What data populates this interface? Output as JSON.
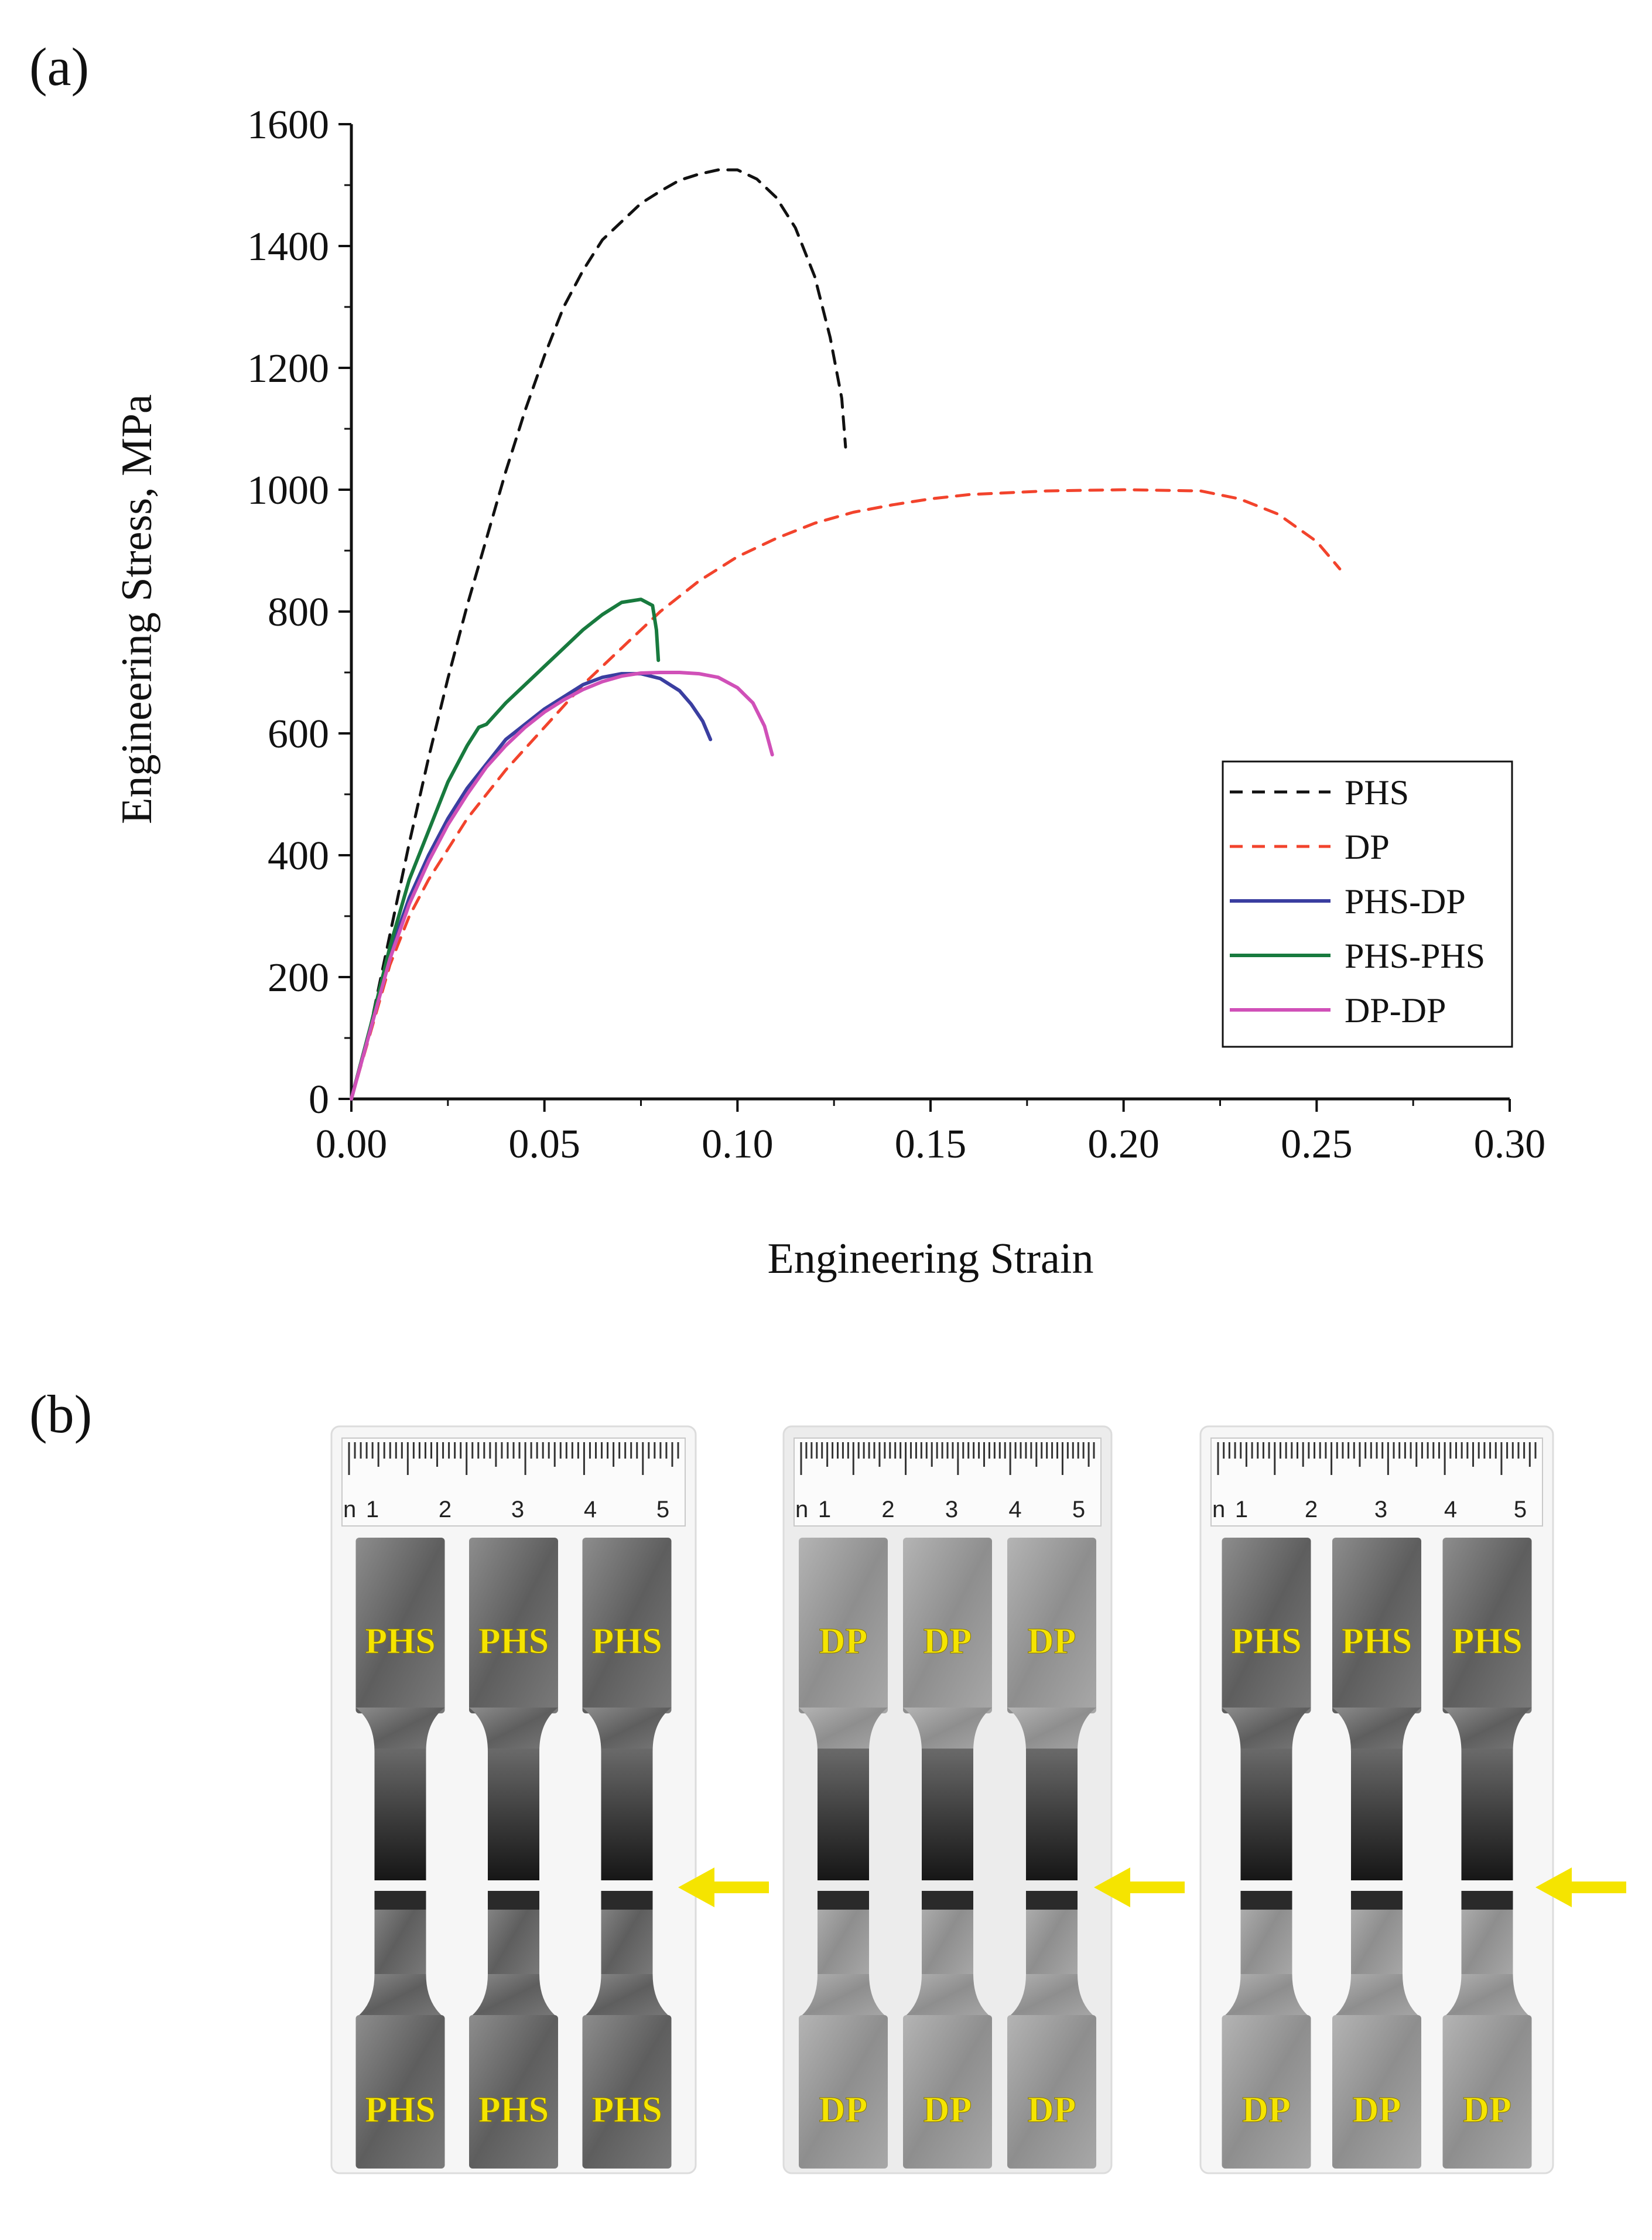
{
  "panel_a_label": "(a)",
  "panel_b_label": "(b)",
  "colors": {
    "PHS": "#111111",
    "DP": "#f2432c",
    "PHS-DP": "#3a3ea0",
    "PHS-PHS": "#187a3e",
    "DP-DP": "#d050b8",
    "arrow": "#f5e400",
    "label": "#f5e400"
  },
  "chart_data": {
    "type": "line",
    "title": "",
    "xlabel": "Engineering Strain",
    "ylabel": "Engineering Stress, MPa",
    "xlim": [
      0,
      0.3
    ],
    "ylim": [
      0,
      1600
    ],
    "x_ticks": [
      "0.00",
      "0.05",
      "0.10",
      "0.15",
      "0.20",
      "0.25",
      "0.30"
    ],
    "y_ticks": [
      "0",
      "200",
      "400",
      "600",
      "800",
      "1000",
      "1200",
      "1400",
      "1600"
    ],
    "legend_position": "lower-right",
    "series": [
      {
        "name": "PHS",
        "style": "dashed",
        "color": "#111111",
        "x": [
          0,
          0.005,
          0.01,
          0.015,
          0.02,
          0.025,
          0.03,
          0.035,
          0.04,
          0.045,
          0.05,
          0.055,
          0.06,
          0.065,
          0.07,
          0.075,
          0.08,
          0.085,
          0.09,
          0.095,
          0.1,
          0.105,
          0.11,
          0.115,
          0.12,
          0.124,
          0.127,
          0.128
        ],
        "y": [
          0,
          120,
          270,
          420,
          560,
          690,
          810,
          920,
          1030,
          1130,
          1220,
          1300,
          1360,
          1410,
          1440,
          1470,
          1490,
          1508,
          1518,
          1525,
          1525,
          1510,
          1480,
          1430,
          1350,
          1250,
          1150,
          1070
        ]
      },
      {
        "name": "DP",
        "style": "dashed",
        "color": "#f2432c",
        "x": [
          0,
          0.005,
          0.01,
          0.015,
          0.02,
          0.03,
          0.04,
          0.05,
          0.06,
          0.07,
          0.08,
          0.09,
          0.1,
          0.11,
          0.12,
          0.13,
          0.14,
          0.15,
          0.16,
          0.18,
          0.2,
          0.22,
          0.23,
          0.24,
          0.25,
          0.256
        ],
        "y": [
          0,
          110,
          220,
          300,
          360,
          460,
          540,
          610,
          680,
          740,
          800,
          850,
          890,
          920,
          945,
          963,
          975,
          985,
          992,
          998,
          1000,
          998,
          985,
          960,
          915,
          870
        ]
      },
      {
        "name": "PHS-DP",
        "style": "solid",
        "color": "#3a3ea0",
        "x": [
          0,
          0.005,
          0.01,
          0.015,
          0.02,
          0.025,
          0.03,
          0.035,
          0.04,
          0.045,
          0.05,
          0.055,
          0.06,
          0.065,
          0.07,
          0.075,
          0.08,
          0.085,
          0.088,
          0.091,
          0.093
        ],
        "y": [
          0,
          120,
          240,
          330,
          400,
          460,
          510,
          550,
          590,
          615,
          640,
          660,
          680,
          692,
          698,
          698,
          690,
          670,
          648,
          620,
          590
        ]
      },
      {
        "name": "PHS-PHS",
        "style": "solid",
        "color": "#187a3e",
        "x": [
          0,
          0.005,
          0.01,
          0.015,
          0.02,
          0.025,
          0.03,
          0.033,
          0.035,
          0.04,
          0.045,
          0.05,
          0.055,
          0.06,
          0.065,
          0.07,
          0.075,
          0.078,
          0.079,
          0.0795
        ],
        "y": [
          0,
          120,
          250,
          360,
          440,
          520,
          580,
          610,
          615,
          650,
          680,
          710,
          740,
          770,
          795,
          815,
          820,
          810,
          770,
          720
        ]
      },
      {
        "name": "DP-DP",
        "style": "solid",
        "color": "#d050b8",
        "x": [
          0,
          0.005,
          0.01,
          0.015,
          0.02,
          0.025,
          0.03,
          0.035,
          0.04,
          0.045,
          0.05,
          0.055,
          0.06,
          0.065,
          0.07,
          0.075,
          0.08,
          0.085,
          0.09,
          0.095,
          0.1,
          0.104,
          0.107,
          0.109
        ],
        "y": [
          0,
          115,
          230,
          320,
          390,
          450,
          500,
          545,
          580,
          610,
          635,
          655,
          672,
          685,
          694,
          699,
          700,
          700,
          698,
          692,
          675,
          650,
          612,
          565
        ]
      }
    ]
  },
  "photos": {
    "ruler_numbers": [
      "1",
      "2",
      "3",
      "4",
      "5"
    ],
    "ruler_prefix": "n",
    "groups": [
      {
        "name": "PHS-PHS",
        "top_labels": [
          "PHS",
          "PHS",
          "PHS"
        ],
        "bottom_labels": [
          "PHS",
          "PHS",
          "PHS"
        ]
      },
      {
        "name": "DP-DP",
        "top_labels": [
          "DP",
          "DP",
          "DP"
        ],
        "bottom_labels": [
          "DP",
          "DP",
          "DP"
        ]
      },
      {
        "name": "PHS-DP",
        "top_labels": [
          "PHS",
          "PHS",
          "PHS"
        ],
        "bottom_labels": [
          "DP",
          "DP",
          "DP"
        ]
      }
    ]
  }
}
